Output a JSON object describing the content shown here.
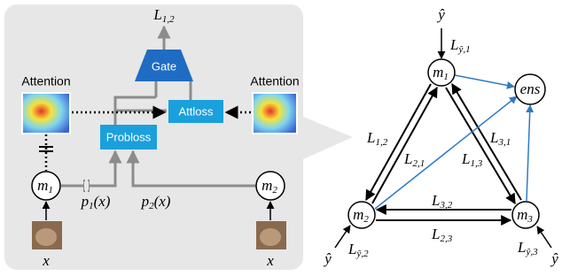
{
  "left_panel": {
    "output_loss": {
      "base": "L",
      "sub": "1,2"
    },
    "gate": "Gate",
    "attention_left": "Attention",
    "attention_right": "Attention",
    "attloss": "Attloss",
    "probloss": "Probloss",
    "model_1": {
      "base": "m",
      "sub": "1"
    },
    "model_2": {
      "base": "m",
      "sub": "2"
    },
    "prob_1": {
      "base": "p",
      "sub": "1",
      "tail": "(x)"
    },
    "prob_2": {
      "base": "p",
      "sub": "2",
      "tail": "(x)"
    },
    "input_left": "x",
    "input_right": "x"
  },
  "right_panel": {
    "nodes": [
      {
        "base": "m",
        "sub": "1"
      },
      {
        "base": "m",
        "sub": "2"
      },
      {
        "base": "m",
        "sub": "3"
      },
      {
        "label": "ens"
      }
    ],
    "targets": [
      "ŷ",
      "ŷ",
      "ŷ"
    ],
    "target_losses": [
      {
        "base": "L",
        "sub": "ŷ,1"
      },
      {
        "base": "L",
        "sub": "ŷ,2"
      },
      {
        "base": "L",
        "sub": "ŷ,3"
      }
    ],
    "edge_losses": [
      {
        "base": "L",
        "sub": "1,2"
      },
      {
        "base": "L",
        "sub": "2,1"
      },
      {
        "base": "L",
        "sub": "3,1"
      },
      {
        "base": "L",
        "sub": "1,3"
      },
      {
        "base": "L",
        "sub": "3,2"
      },
      {
        "base": "L",
        "sub": "2,3"
      }
    ]
  }
}
